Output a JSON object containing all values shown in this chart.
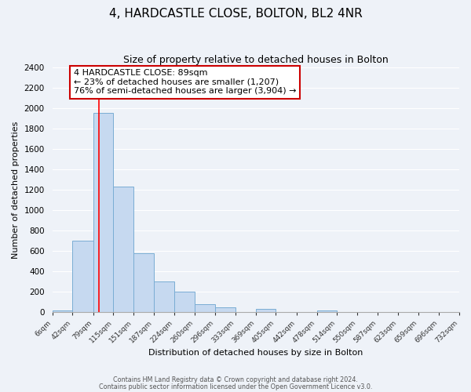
{
  "title": "4, HARDCASTLE CLOSE, BOLTON, BL2 4NR",
  "subtitle": "Size of property relative to detached houses in Bolton",
  "xlabel": "Distribution of detached houses by size in Bolton",
  "ylabel": "Number of detached properties",
  "bar_edges": [
    6,
    42,
    79,
    115,
    151,
    187,
    224,
    260,
    296,
    333,
    369,
    405,
    442,
    478,
    514,
    550,
    587,
    623,
    659,
    696,
    732
  ],
  "bar_heights": [
    20,
    700,
    1950,
    1230,
    575,
    300,
    200,
    80,
    45,
    0,
    35,
    0,
    0,
    20,
    0,
    0,
    0,
    0,
    0,
    0
  ],
  "bar_color": "#c6d9f0",
  "bar_edge_color": "#7aadd4",
  "property_line_x": 89,
  "property_line_color": "red",
  "annotation_title": "4 HARDCASTLE CLOSE: 89sqm",
  "annotation_line1": "← 23% of detached houses are smaller (1,207)",
  "annotation_line2": "76% of semi-detached houses are larger (3,904) →",
  "annotation_box_color": "white",
  "annotation_box_edge_color": "#cc0000",
  "ylim": [
    0,
    2400
  ],
  "yticks": [
    0,
    200,
    400,
    600,
    800,
    1000,
    1200,
    1400,
    1600,
    1800,
    2000,
    2200,
    2400
  ],
  "tick_labels": [
    "6sqm",
    "42sqm",
    "79sqm",
    "115sqm",
    "151sqm",
    "187sqm",
    "224sqm",
    "260sqm",
    "296sqm",
    "333sqm",
    "369sqm",
    "405sqm",
    "442sqm",
    "478sqm",
    "514sqm",
    "550sqm",
    "587sqm",
    "623sqm",
    "659sqm",
    "696sqm",
    "732sqm"
  ],
  "footer1": "Contains HM Land Registry data © Crown copyright and database right 2024.",
  "footer2": "Contains public sector information licensed under the Open Government Licence v3.0.",
  "background_color": "#eef2f8",
  "plot_background_color": "#eef2f8",
  "grid_color": "#ffffff",
  "title_fontsize": 11,
  "subtitle_fontsize": 9,
  "annotation_fontsize": 8,
  "ylabel_fontsize": 8,
  "xlabel_fontsize": 8,
  "figsize": [
    6.0,
    5.0
  ],
  "dpi": 100
}
